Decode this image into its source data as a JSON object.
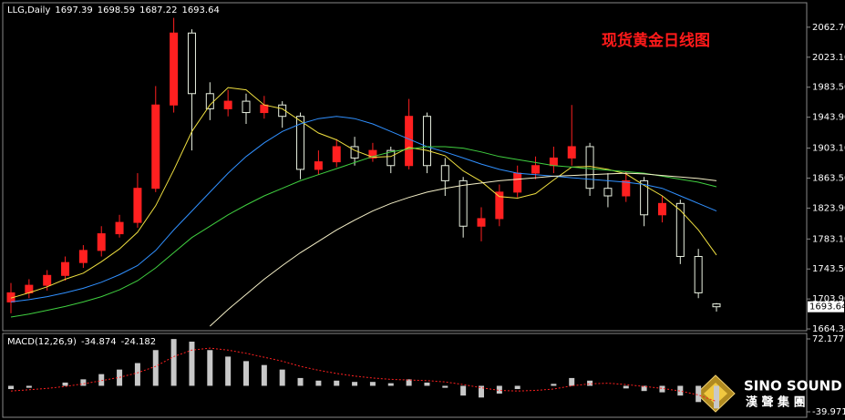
{
  "chart_data": [
    {
      "type": "candlestick",
      "title": "LLG,Daily",
      "annotation": "现货黄金日线图",
      "annotation_color": "#ff1a1a",
      "up_color": "#ff2020",
      "down_color": "#e8f0e0",
      "open": [
        1700,
        1712,
        1722,
        1735,
        1752,
        1768,
        1790,
        1805,
        1850,
        1960,
        2055,
        1975,
        1955,
        1965,
        1950,
        1960,
        1945,
        1875,
        1885,
        1905,
        1890,
        1900,
        1880,
        1945,
        1880,
        1860,
        1800,
        1810,
        1845,
        1870,
        1880,
        1890,
        1905,
        1850,
        1840,
        1860,
        1815,
        1830,
        1760,
        1697.39
      ],
      "high": [
        1725,
        1730,
        1742,
        1760,
        1775,
        1800,
        1815,
        1870,
        1985,
        2075,
        2060,
        1990,
        1980,
        1975,
        1972,
        1965,
        1950,
        1900,
        1915,
        1918,
        1910,
        1905,
        1968,
        1950,
        1890,
        1865,
        1825,
        1855,
        1880,
        1892,
        1905,
        1960,
        1910,
        1870,
        1872,
        1865,
        1840,
        1835,
        1770,
        1698.59
      ],
      "low": [
        1685,
        1705,
        1715,
        1728,
        1745,
        1760,
        1785,
        1798,
        1845,
        1950,
        1900,
        1940,
        1945,
        1935,
        1942,
        1930,
        1862,
        1868,
        1878,
        1880,
        1885,
        1870,
        1875,
        1870,
        1840,
        1785,
        1780,
        1800,
        1838,
        1862,
        1870,
        1880,
        1840,
        1825,
        1832,
        1800,
        1805,
        1750,
        1705,
        1687.22
      ],
      "close": [
        1712,
        1722,
        1735,
        1752,
        1768,
        1790,
        1805,
        1850,
        1960,
        2055,
        1975,
        1955,
        1965,
        1950,
        1960,
        1945,
        1875,
        1885,
        1905,
        1890,
        1900,
        1880,
        1945,
        1880,
        1860,
        1800,
        1810,
        1845,
        1870,
        1880,
        1890,
        1905,
        1850,
        1840,
        1860,
        1815,
        1830,
        1760,
        1712,
        1693.64
      ],
      "series": [
        {
          "color": "#f0e040",
          "values": [
            1705,
            1712,
            1720,
            1730,
            1738,
            1753,
            1770,
            1792,
            1827,
            1874,
            1925,
            1960,
            1983,
            1980,
            1960,
            1955,
            1939,
            1923,
            1914,
            1900,
            1891,
            1892,
            1904,
            1900,
            1893,
            1873,
            1859,
            1839,
            1837,
            1843,
            1861,
            1878,
            1879,
            1875,
            1869,
            1854,
            1840,
            1821,
            1795,
            1762
          ]
        },
        {
          "color": "#3090ff",
          "values": [
            1700,
            1703,
            1707,
            1712,
            1718,
            1726,
            1736,
            1748,
            1768,
            1795,
            1820,
            1845,
            1870,
            1892,
            1910,
            1925,
            1935,
            1942,
            1945,
            1942,
            1935,
            1925,
            1915,
            1905,
            1898,
            1890,
            1882,
            1875,
            1870,
            1868,
            1866,
            1864,
            1862,
            1860,
            1858,
            1855,
            1850,
            1840,
            1830,
            1820
          ]
        },
        {
          "color": "#40d040",
          "values": [
            1680,
            1684,
            1689,
            1694,
            1700,
            1707,
            1716,
            1728,
            1745,
            1765,
            1785,
            1800,
            1815,
            1828,
            1840,
            1850,
            1860,
            1868,
            1876,
            1884,
            1892,
            1898,
            1902,
            1905,
            1905,
            1903,
            1898,
            1892,
            1888,
            1884,
            1880,
            1878,
            1876,
            1874,
            1872,
            1870,
            1866,
            1862,
            1858,
            1852
          ]
        },
        {
          "color": "#f5f0c8",
          "values": [
            null,
            null,
            null,
            null,
            null,
            null,
            null,
            null,
            null,
            null,
            null,
            1668,
            1690,
            1710,
            1730,
            1748,
            1765,
            1780,
            1795,
            1808,
            1820,
            1830,
            1838,
            1845,
            1850,
            1854,
            1857,
            1860,
            1862,
            1864,
            1866,
            1867,
            1868,
            1869,
            1870,
            1869,
            1867,
            1865,
            1863,
            1860
          ]
        }
      ],
      "ylim": [
        1662,
        2095
      ],
      "yticks": [
        {
          "value": 2062.7,
          "label": "2062.70"
        },
        {
          "value": 2023.1,
          "label": "2023.10"
        },
        {
          "value": 1983.5,
          "label": "1983.50"
        },
        {
          "value": 1943.9,
          "label": "1943.90"
        },
        {
          "value": 1903.1,
          "label": "1903.10"
        },
        {
          "value": 1863.5,
          "label": "1863.50"
        },
        {
          "value": 1823.9,
          "label": "1823.90"
        },
        {
          "value": 1783.1,
          "label": "1783.10"
        },
        {
          "value": 1743.5,
          "label": "1743.50"
        },
        {
          "value": 1703.9,
          "label": "1703.90"
        },
        1664.34
      ],
      "grid": false
    },
    {
      "type": "macd",
      "title": "MACD(12,26,9)",
      "series": [
        {
          "style": "bar",
          "color": "#c8c8c8",
          "values": [
            -5,
            -3,
            0,
            5,
            10,
            18,
            25,
            35,
            55,
            72,
            68,
            55,
            45,
            38,
            32,
            25,
            12,
            8,
            8,
            6,
            6,
            4,
            10,
            5,
            -3,
            -15,
            -18,
            -12,
            -5,
            0,
            3,
            12,
            8,
            0,
            -4,
            -8,
            -10,
            -15,
            -25,
            -34.874
          ]
        },
        {
          "style": "dotted",
          "color": "#ff2020",
          "values": [
            -8,
            -6,
            -4,
            -1,
            3,
            8,
            13,
            20,
            30,
            45,
            55,
            58,
            55,
            50,
            44,
            38,
            30,
            24,
            19,
            15,
            12,
            10,
            9,
            8,
            6,
            2,
            -3,
            -7,
            -8,
            -7,
            -5,
            0,
            3,
            4,
            2,
            -1,
            -4,
            -8,
            -14,
            -24.182
          ]
        }
      ],
      "ylim": [
        -48.4,
        80.6
      ],
      "yticks": [
        72.177,
        -39.971
      ],
      "grid": false
    }
  ],
  "logo": {
    "name": "SINO SOUND",
    "subtitle": "漢 聲 集 團"
  }
}
